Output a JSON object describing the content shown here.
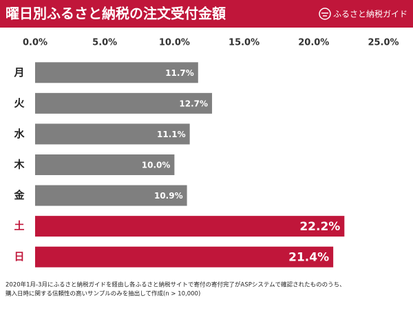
{
  "chart_data": {
    "type": "hbar",
    "title": "曜日別ふるさと納税の注文受付金額",
    "brand": "ふるさと納税ガイド",
    "categories": [
      "月",
      "火",
      "水",
      "木",
      "金",
      "土",
      "日"
    ],
    "values": [
      11.7,
      12.7,
      11.1,
      10.0,
      10.9,
      22.2,
      21.4
    ],
    "value_labels": [
      "11.7%",
      "12.7%",
      "11.1%",
      "10.0%",
      "10.9%",
      "22.2%",
      "21.4%"
    ],
    "colors": [
      "#7f7f7f",
      "#7f7f7f",
      "#7f7f7f",
      "#7f7f7f",
      "#7f7f7f",
      "#c0163a",
      "#c0163a"
    ],
    "xlim": [
      0,
      25
    ],
    "xticks": [
      {
        "value": 0,
        "label": "0.0%"
      },
      {
        "value": 5,
        "label": "5.0%"
      },
      {
        "value": 10,
        "label": "10.0%"
      },
      {
        "value": 15,
        "label": "15.0%"
      },
      {
        "value": 20,
        "label": "20.0%"
      },
      {
        "value": 25,
        "label": "25.0%"
      }
    ],
    "footnote": [
      "2020年1月-3月にふるさと納税ガイドを経由し各ふるさと納税サイトで寄付の寄付完了がASPシステムで確認されたもののうち、",
      "購入日時に関する信頼性の高いサンプルのみを抽出して作成(n > 10,000)"
    ]
  }
}
